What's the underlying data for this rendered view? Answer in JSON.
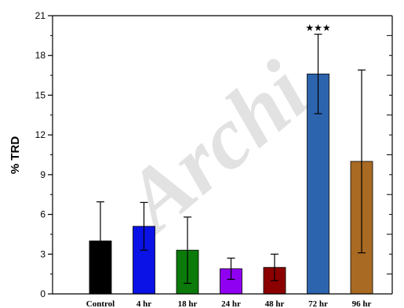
{
  "watermark": "Archi",
  "chart_data": {
    "type": "bar",
    "title": "",
    "xlabel": "",
    "ylabel": "% TRD",
    "ylim": [
      0,
      21
    ],
    "yticks": [
      0,
      3,
      6,
      9,
      12,
      15,
      18,
      21
    ],
    "grid": false,
    "legend": "none",
    "categories": [
      "Control",
      "4 hr",
      "18 hr",
      "24 hr",
      "48 hr",
      "72 hr",
      "96 hr"
    ],
    "values": [
      4.0,
      5.1,
      3.3,
      1.9,
      2.0,
      16.6,
      10.0
    ],
    "error": [
      2.95,
      1.8,
      2.5,
      0.8,
      1.0,
      3.0,
      6.9
    ],
    "colors": [
      "#000000",
      "#0a12e6",
      "#0b7a0b",
      "#8f00f2",
      "#8b0000",
      "#2d64ae",
      "#a96a23"
    ],
    "annotations": [
      {
        "category": "72 hr",
        "text": "★★★"
      }
    ]
  }
}
